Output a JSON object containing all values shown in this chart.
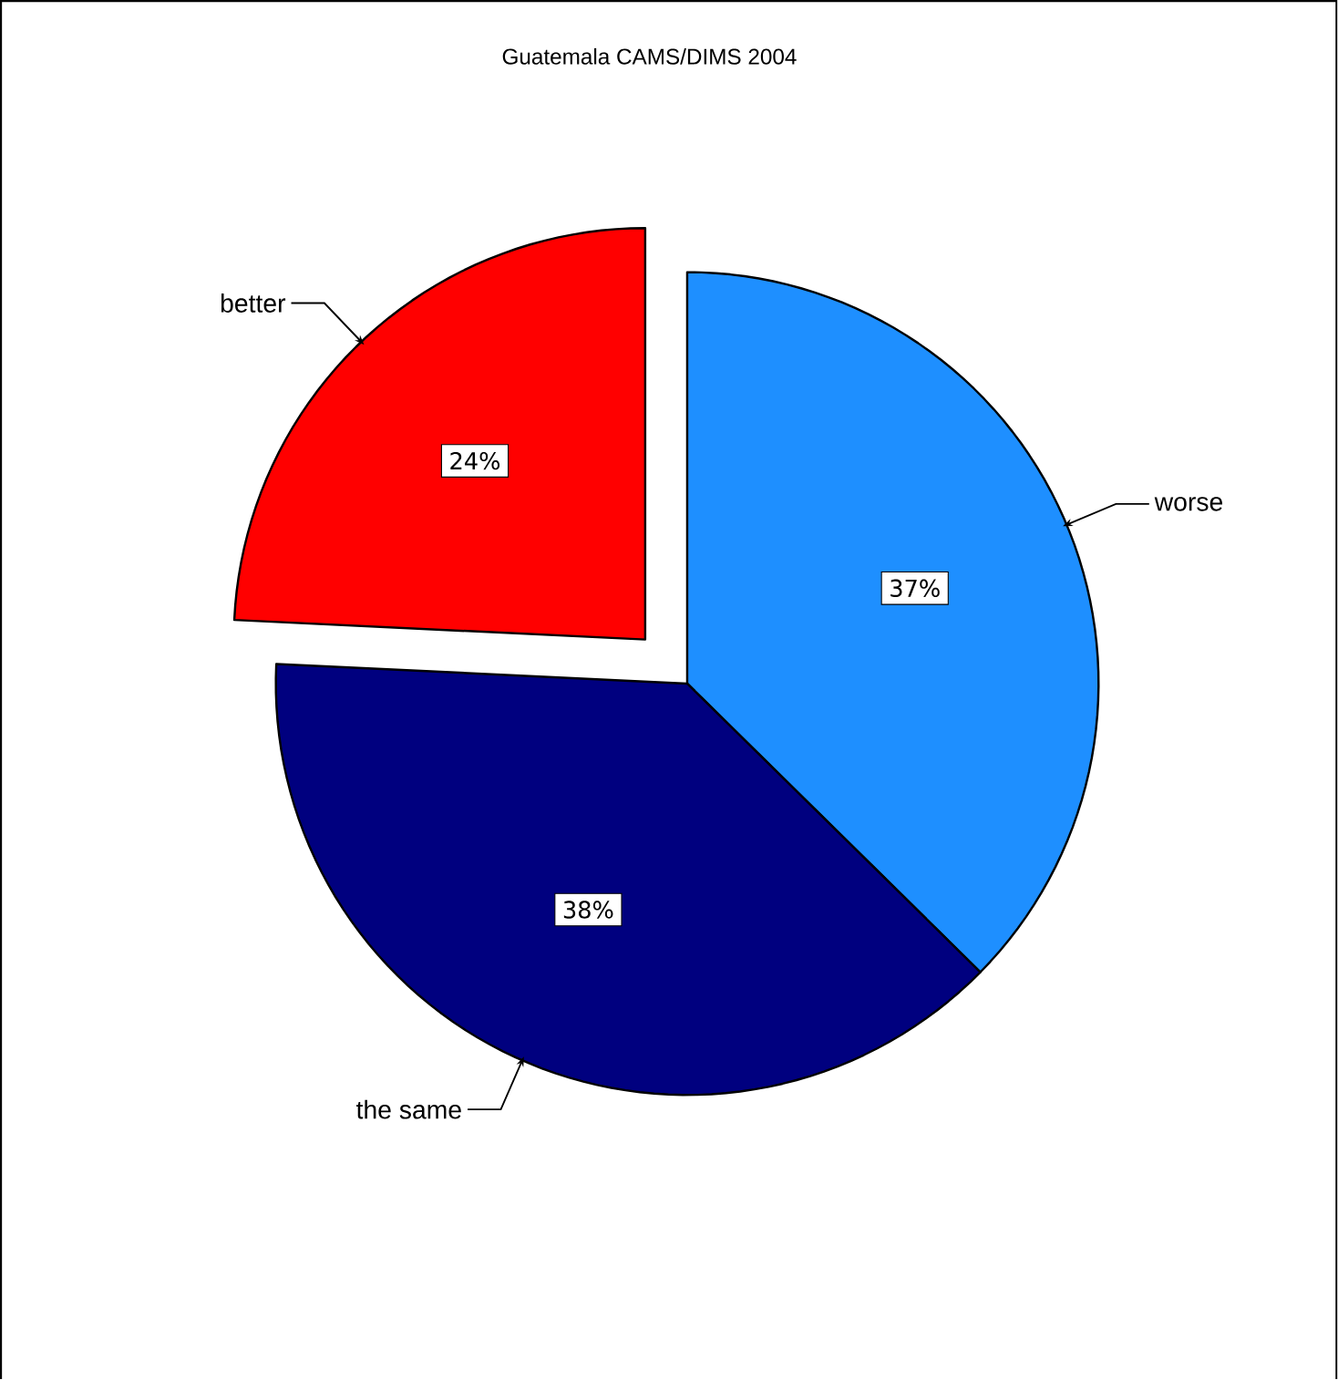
{
  "chart_data": {
    "type": "pie",
    "title": "Guatemala CAMS/DIMS 2004",
    "categories": [
      "worse",
      "the same",
      "better"
    ],
    "values": [
      37,
      38,
      24
    ],
    "value_labels": [
      "37%",
      "38%",
      "24%"
    ],
    "colors": [
      "#1e8fff",
      "#00007f",
      "#ff0000"
    ]
  }
}
